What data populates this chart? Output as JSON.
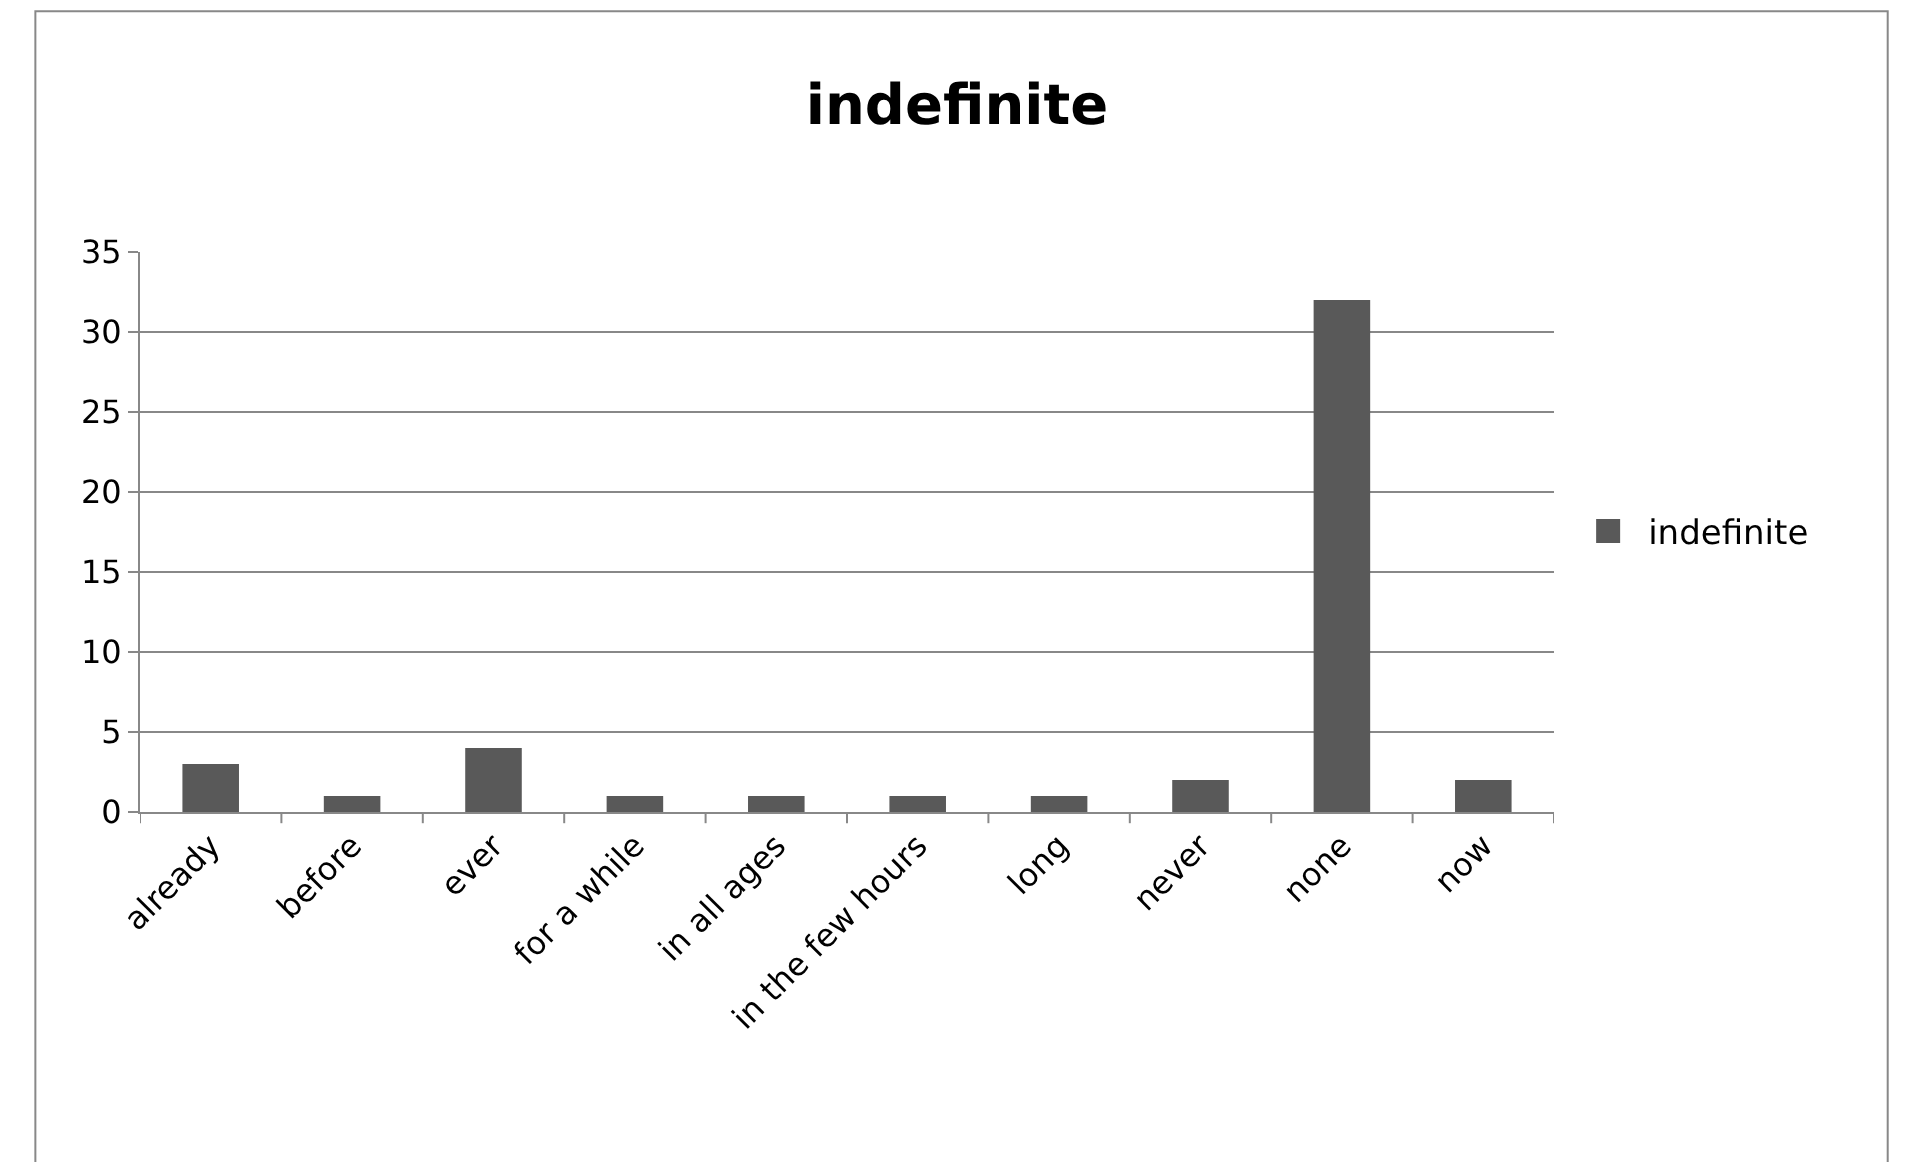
{
  "chart_data": {
    "type": "bar",
    "title": "indefinite",
    "categories": [
      "already",
      "before",
      "ever",
      "for a while",
      "in all ages",
      "in the few hours",
      "long",
      "never",
      "none",
      "now"
    ],
    "series": [
      {
        "name": "indefinite",
        "color": "#595959",
        "values": [
          3,
          1,
          4,
          1,
          1,
          1,
          1,
          2,
          32,
          2
        ]
      }
    ],
    "ylim": [
      0,
      35
    ],
    "yticks": [
      0,
      5,
      10,
      15,
      20,
      25,
      30,
      35
    ],
    "grid": "y",
    "legend": "right"
  }
}
